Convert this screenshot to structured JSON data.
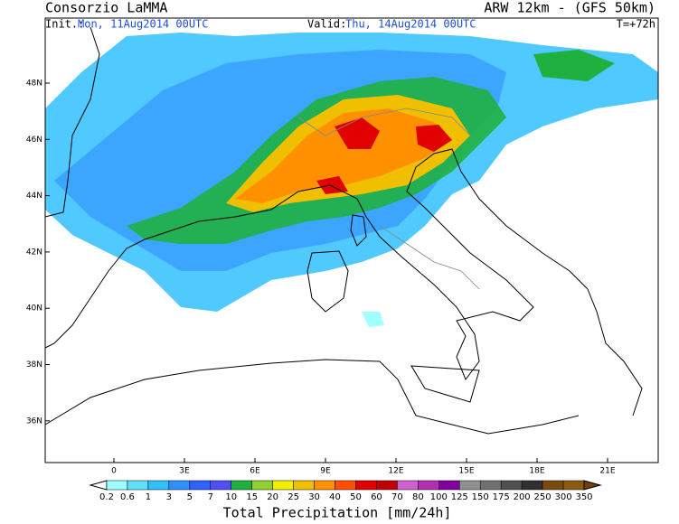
{
  "header": {
    "left": "Consorzio LaMMA",
    "right": "ARW 12km - (GFS 50km)",
    "init_label": "Init.:",
    "init": "Mon, 11Aug2014 00UTC",
    "valid_label": "Valid:",
    "valid": "Thu, 14Aug2014 00UTC",
    "lead": "T=+72h"
  },
  "map": {
    "lat_labels": [
      "48N",
      "46N",
      "44N",
      "42N",
      "40N",
      "38N",
      "36N"
    ],
    "lon_labels": [
      "0",
      "3E",
      "6E",
      "9E",
      "12E",
      "15E",
      "18E",
      "21E"
    ]
  },
  "legend": {
    "title": "Total Precipitation [mm/24h]",
    "levels": [
      "0.2",
      "0.6",
      "1",
      "3",
      "5",
      "7",
      "10",
      "15",
      "20",
      "25",
      "30",
      "40",
      "50",
      "60",
      "70",
      "80",
      "100",
      "125",
      "150",
      "175",
      "200",
      "250",
      "300",
      "350"
    ],
    "under_color": "#ffffff",
    "colors": [
      "#a0ffff",
      "#60e0ff",
      "#30c0ff",
      "#3090ff",
      "#3060ff",
      "#5050f0",
      "#20b040",
      "#90d030",
      "#f0f000",
      "#f0c000",
      "#ff9000",
      "#ff5000",
      "#e00000",
      "#c00000",
      "#d060d0",
      "#b030b0",
      "#8000a0",
      "#909090",
      "#707070",
      "#505050",
      "#303030",
      "#7a4a10",
      "#8a5a10"
    ],
    "over_color": "#704010"
  }
}
